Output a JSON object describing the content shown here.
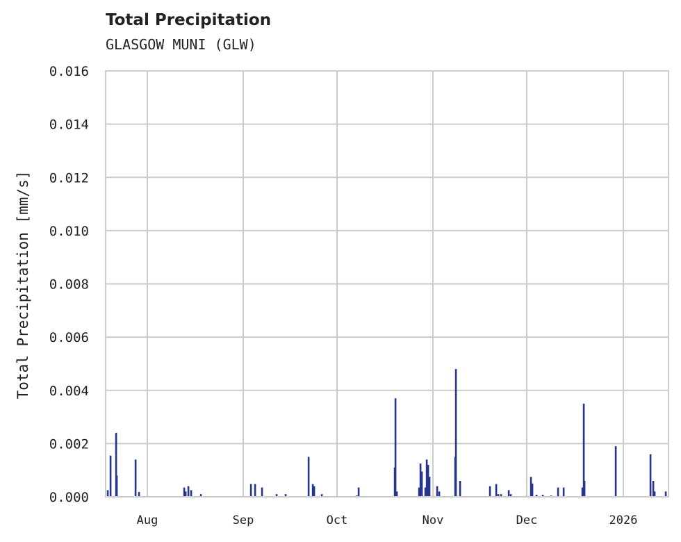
{
  "header": {
    "title": "Total Precipitation",
    "subtitle": "GLASGOW MUNI (GLW)"
  },
  "chart_data": {
    "type": "bar",
    "title": "Total Precipitation",
    "subtitle": "GLASGOW MUNI (GLW)",
    "xlabel": "",
    "ylabel": "Total Precipitation [mm/s]",
    "ylim": [
      0,
      0.016
    ],
    "yticks": [
      "0.000",
      "0.002",
      "0.004",
      "0.006",
      "0.008",
      "0.010",
      "0.012",
      "0.014",
      "0.016"
    ],
    "xticks": [
      "Aug",
      "Sep",
      "Oct",
      "Nov",
      "Dec",
      "2026"
    ],
    "grid": true,
    "color": "#27348b",
    "series": [
      {
        "name": "Total Precipitation",
        "points": [
          {
            "x": 155,
            "v": 0.00025
          },
          {
            "x": 159,
            "v": 0.00155
          },
          {
            "x": 167,
            "v": 0.0024
          },
          {
            "x": 168,
            "v": 0.0008
          },
          {
            "x": 195,
            "v": 0.0014
          },
          {
            "x": 200,
            "v": 0.00018
          },
          {
            "x": 265,
            "v": 0.00035
          },
          {
            "x": 267,
            "v": 0.0002
          },
          {
            "x": 271,
            "v": 0.0004
          },
          {
            "x": 275,
            "v": 0.00025
          },
          {
            "x": 289,
            "v": 0.0001
          },
          {
            "x": 361,
            "v": 0.00048
          },
          {
            "x": 367,
            "v": 0.00048
          },
          {
            "x": 377,
            "v": 0.00035
          },
          {
            "x": 398,
            "v": 0.0001
          },
          {
            "x": 411,
            "v": 0.0001
          },
          {
            "x": 444,
            "v": 0.0015
          },
          {
            "x": 450,
            "v": 0.00048
          },
          {
            "x": 452,
            "v": 0.0004
          },
          {
            "x": 463,
            "v": 0.0001
          },
          {
            "x": 513,
            "v": 5e-05
          },
          {
            "x": 516,
            "v": 0.00035
          },
          {
            "x": 568,
            "v": 0.0011
          },
          {
            "x": 569,
            "v": 0.0037
          },
          {
            "x": 571,
            "v": 0.0002
          },
          {
            "x": 603,
            "v": 0.00035
          },
          {
            "x": 605,
            "v": 0.00125
          },
          {
            "x": 607,
            "v": 0.00095
          },
          {
            "x": 612,
            "v": 0.00035
          },
          {
            "x": 614,
            "v": 0.0014
          },
          {
            "x": 616,
            "v": 0.0012
          },
          {
            "x": 618,
            "v": 0.00075
          },
          {
            "x": 629,
            "v": 0.0004
          },
          {
            "x": 632,
            "v": 0.0002
          },
          {
            "x": 655,
            "v": 0.0015
          },
          {
            "x": 656,
            "v": 0.0048
          },
          {
            "x": 662,
            "v": 0.0006
          },
          {
            "x": 705,
            "v": 0.0004
          },
          {
            "x": 714,
            "v": 0.00048
          },
          {
            "x": 717,
            "v": 0.0001
          },
          {
            "x": 721,
            "v": 0.0001
          },
          {
            "x": 732,
            "v": 0.00025
          },
          {
            "x": 735,
            "v": 0.0001
          },
          {
            "x": 757,
            "v": 3e-05
          },
          {
            "x": 764,
            "v": 0.00075
          },
          {
            "x": 766,
            "v": 0.0005
          },
          {
            "x": 772,
            "v": 8e-05
          },
          {
            "x": 781,
            "v": 8e-05
          },
          {
            "x": 793,
            "v": 5e-05
          },
          {
            "x": 803,
            "v": 0.00035
          },
          {
            "x": 811,
            "v": 0.00035
          },
          {
            "x": 838,
            "v": 0.00035
          },
          {
            "x": 840,
            "v": 0.0035
          },
          {
            "x": 841,
            "v": 0.0006
          },
          {
            "x": 886,
            "v": 0.0019
          },
          {
            "x": 936,
            "v": 0.0016
          },
          {
            "x": 940,
            "v": 0.0006
          },
          {
            "x": 942,
            "v": 0.0002
          },
          {
            "x": 958,
            "v": 0.0002
          }
        ]
      }
    ]
  }
}
